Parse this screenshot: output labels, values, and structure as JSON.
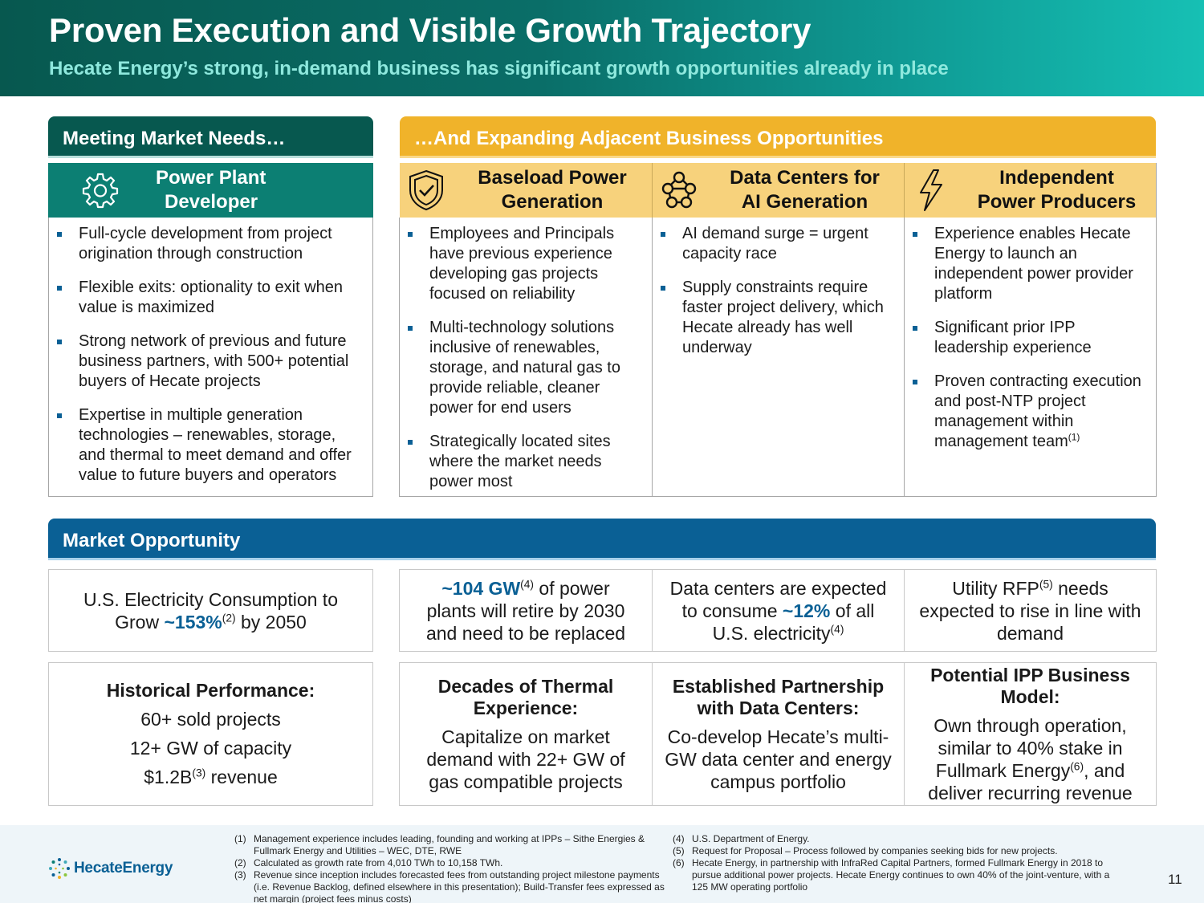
{
  "header": {
    "title": "Proven Execution and Visible Growth Trajectory",
    "subtitle": "Hecate Energy’s strong, in-demand business has significant growth opportunities already in place"
  },
  "left_section": {
    "bar_title": "Meeting Market Needs…",
    "column": {
      "title_line1": "Power Plant",
      "title_line2": "Developer",
      "icon": "gear-icon",
      "bullets": [
        "Full-cycle development from project origination through construction",
        "Flexible exits: optionality to exit when value is maximized",
        "Strong network of previous and future business partners, with 500+ potential buyers of Hecate projects",
        "Expertise in multiple generation technologies – renewables, storage, and thermal to meet demand and offer value to future buyers and operators"
      ]
    }
  },
  "right_section": {
    "bar_title": "…And Expanding Adjacent Business Opportunities",
    "columns": [
      {
        "title_line1": "Baseload Power",
        "title_line2": "Generation",
        "icon": "shield-check-icon",
        "bullets": [
          "Employees and Principals have previous experience developing gas projects focused on reliability",
          "Multi-technology solutions inclusive of renewables, storage, and natural gas to provide reliable, cleaner power for end users",
          "Strategically located sites where the market needs power most"
        ]
      },
      {
        "title_line1": "Data Centers for",
        "title_line2": "AI Generation",
        "icon": "network-icon",
        "bullets": [
          "AI demand surge = urgent capacity race",
          "Supply constraints require faster project delivery, which Hecate already has well underway"
        ]
      },
      {
        "title_line1": "Independent",
        "title_line2": "Power Producers",
        "icon": "lightning-icon",
        "bullets": [
          "Experience enables Hecate Energy to launch an independent power provider platform",
          "Significant prior IPP leadership experience",
          "Proven contracting execution and post-NTP project management within management team"
        ],
        "last_bullet_sup": "(1)"
      }
    ]
  },
  "market": {
    "bar_title": "Market Opportunity",
    "stat1": {
      "pre": "U.S. Electricity Consumption to Grow ",
      "hl": "~153%",
      "sup": "(2)",
      "post": "  by 2050"
    },
    "stat2": {
      "hl": "~104 GW",
      "sup": "(4)",
      "post": " of power plants will retire by 2030 and need to be replaced"
    },
    "stat3": {
      "pre": "Data centers are expected to consume ",
      "hl": "~12%",
      "mid": " of all U.S. electricity",
      "sup": "(4)"
    },
    "stat4": {
      "pre": "Utility RFP",
      "sup": "(5)",
      "post": " needs expected to rise in line with demand"
    },
    "perf": {
      "title": "Historical Performance:",
      "line1": "60+ sold projects",
      "line2": "12+ GW of capacity",
      "line3_pre": "$1.2B",
      "line3_sup": "(3)",
      "line3_post": " revenue"
    },
    "thermal": {
      "title": "Decades of Thermal Experience:",
      "body": "Capitalize on market demand with 22+ GW of gas compatible projects"
    },
    "partnership": {
      "title": "Established Partnership with Data Centers:",
      "body": "Co-develop Hecate’s multi-GW data center and energy campus portfolio"
    },
    "ipp": {
      "title": "Potential IPP Business Model:",
      "body_pre": "Own through operation, similar to 40% stake in Fullmark Energy",
      "body_sup": "(6)",
      "body_post": ", and deliver recurring revenue"
    }
  },
  "footer": {
    "logo_text": "HecateEnergy",
    "notes_left": [
      {
        "n": "(1)",
        "text": "Management experience includes leading, founding and working at IPPs – Sithe Energies & Fullmark Energy and Utilities – WEC, DTE, RWE"
      },
      {
        "n": "(2)",
        "text": "Calculated as growth rate from 4,010 TWh to 10,158 TWh."
      },
      {
        "n": "(3)",
        "text": "Revenue since inception includes forecasted fees from outstanding project milestone payments (i.e. Revenue Backlog, defined elsewhere in this presentation); Build-Transfer fees expressed as net margin (project fees minus costs)"
      }
    ],
    "notes_right": [
      {
        "n": "(4)",
        "text": "U.S. Department of Energy."
      },
      {
        "n": "(5)",
        "text": "Request for Proposal – Process followed by companies seeking bids for new projects."
      },
      {
        "n": "(6)",
        "text": "Hecate Energy, in partnership with InfraRed Capital Partners, formed Fullmark Energy in 2018 to pursue additional power projects. Hecate Energy continues to own 40% of the joint-venture, with a 125 MW operating portfolio"
      }
    ],
    "page_number": "11"
  },
  "colors": {
    "teal_dark": "#07584f",
    "teal": "#0c7f73",
    "gold": "#f0b32a",
    "gold_light": "#f7d27c",
    "blue": "#0a6095"
  }
}
